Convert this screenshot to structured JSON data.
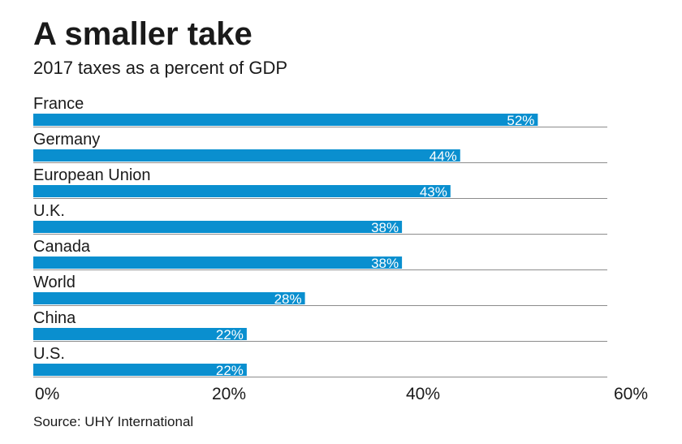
{
  "title": "A smaller take",
  "subtitle": "2017 taxes as a percent of GDP",
  "source": "Source: UHY International",
  "colors": {
    "bar": "#0a8fcf",
    "rule": "#8c8c8c",
    "text": "#1a1a1a",
    "bar_label": "#ffffff"
  },
  "chart_data": {
    "type": "bar",
    "orientation": "horizontal",
    "title": "A smaller take",
    "subtitle": "2017 taxes as a percent of GDP",
    "categories": [
      "France",
      "Germany",
      "European Union",
      "U.K.",
      "Canada",
      "World",
      "China",
      "U.S."
    ],
    "values": [
      52,
      44,
      43,
      38,
      38,
      28,
      22,
      22
    ],
    "value_labels": [
      "52%",
      "44%",
      "43%",
      "38%",
      "38%",
      "28%",
      "22%",
      "22%"
    ],
    "xlim": [
      0,
      60
    ],
    "xticks": [
      0,
      20,
      40,
      60
    ],
    "xtick_labels": [
      "0%",
      "20%",
      "40%",
      "60%"
    ],
    "unit": "%",
    "grid": false,
    "legend": "none"
  }
}
